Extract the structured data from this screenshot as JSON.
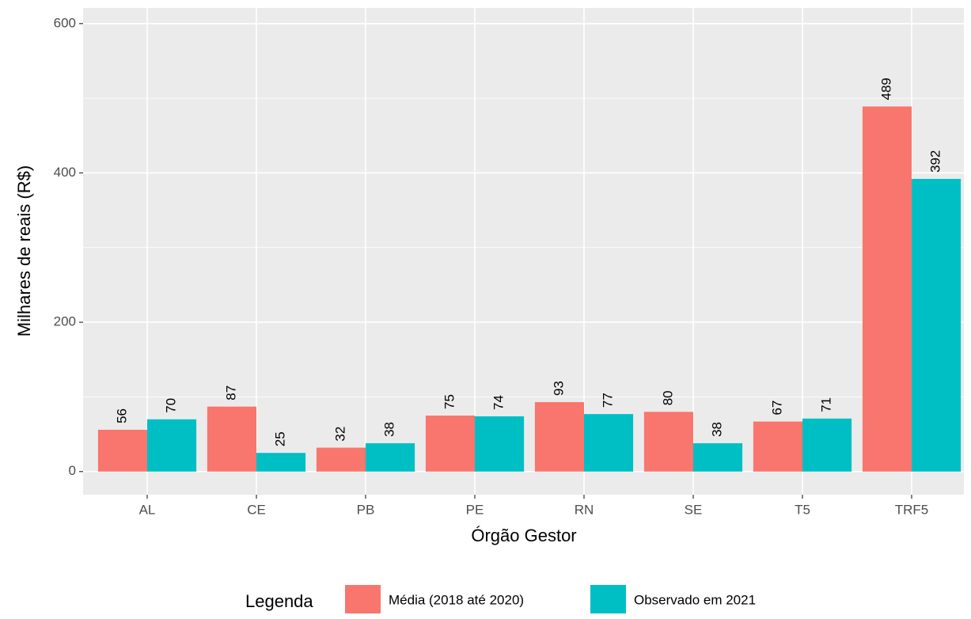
{
  "chart_data": {
    "type": "bar",
    "x_label": "Órgão Gestor",
    "y_label": "Milhares de reais (R$)",
    "categories": [
      "AL",
      "CE",
      "PB",
      "PE",
      "RN",
      "SE",
      "T5",
      "TRF5"
    ],
    "series": [
      {
        "name": "Média (2018 até 2020)",
        "color": "#f8766d",
        "values": [
          56,
          87,
          32,
          75,
          93,
          80,
          67,
          489
        ]
      },
      {
        "name": "Observado em 2021",
        "color": "#00bfc4",
        "values": [
          70,
          25,
          38,
          74,
          77,
          38,
          71,
          392
        ]
      }
    ],
    "ylim": [
      -31,
      621
    ],
    "yticks": [
      0,
      200,
      400,
      600
    ],
    "grid": true,
    "legend_title": "Legenda",
    "legend_position": "bottom"
  }
}
